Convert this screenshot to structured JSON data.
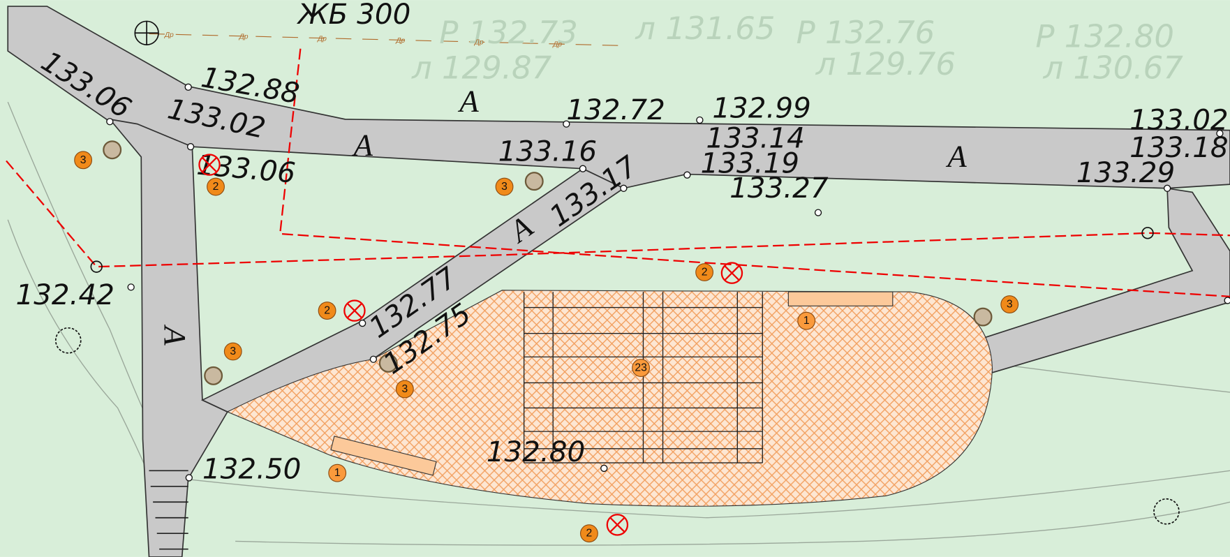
{
  "pipe_label": "ЖБ 300",
  "background_labels": [
    "Р 132.73",
    "л 129.87",
    "л 131.65",
    "Р 132.76",
    "л 129.76",
    "Р 132.80",
    "л 130.67"
  ],
  "drain_labels": [
    "Др",
    "Др",
    "Др",
    "Др",
    "Др",
    "Др"
  ],
  "elevations": [
    "133.06",
    "132.88",
    "133.02",
    "133.06",
    "132.72",
    "133.16",
    "132.99",
    "133.14",
    "133.19",
    "133.27",
    "133.17",
    "133.02",
    "133.18",
    "133.29",
    "132.42",
    "132.77",
    "132.75",
    "132.80",
    "132.50"
  ],
  "road_labels": [
    "A",
    "A",
    "A",
    "A",
    "A"
  ],
  "markers": [
    "3",
    "2",
    "3",
    "2",
    "3",
    "2",
    "3",
    "3",
    "1",
    "23",
    "1",
    "2"
  ]
}
